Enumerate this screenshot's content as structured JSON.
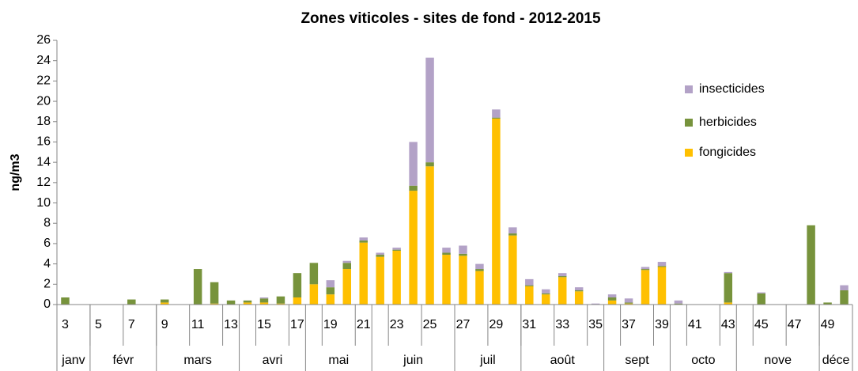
{
  "chart_data": {
    "type": "stacked_bar",
    "title": "Zones viticoles - sites de fond - 2012-2015",
    "y_label": "ng/m3",
    "categories": [
      "3",
      null,
      "5",
      null,
      "7",
      null,
      "9",
      null,
      "11",
      null,
      "13",
      null,
      "15",
      null,
      "17",
      null,
      "19",
      null,
      "21",
      null,
      "23",
      null,
      "25",
      null,
      "27",
      null,
      "29",
      null,
      "31",
      null,
      "33",
      null,
      "35",
      null,
      "37",
      null,
      "39",
      null,
      "41",
      null,
      "43",
      null,
      "45",
      null,
      "47",
      null,
      "49",
      null
    ],
    "months": [
      "janv",
      "janv",
      "févr",
      "févr",
      "févr",
      "févr",
      "mars",
      "mars",
      "mars",
      "mars",
      "mars",
      "avri",
      "avri",
      "avri",
      "avri",
      "mai",
      "mai",
      "mai",
      "mai",
      "juin",
      "juin",
      "juin",
      "juin",
      "juin",
      "juil",
      "juil",
      "juil",
      "juil",
      "août",
      "août",
      "août",
      "août",
      "août",
      "sept",
      "sept",
      "sept",
      "sept",
      "octo",
      "octo",
      "octo",
      "octo",
      "nove",
      "nove",
      "nove",
      "nove",
      "nove",
      "déce",
      "déce"
    ],
    "series": [
      {
        "name": "fongicides",
        "color": "#ffc000",
        "values": [
          0,
          0,
          0,
          0,
          0,
          0,
          0.2,
          0,
          0,
          0.1,
          0,
          0.2,
          0.2,
          0.1,
          0.7,
          2.0,
          1.0,
          3.5,
          6.1,
          4.7,
          5.3,
          11.2,
          13.6,
          4.9,
          4.8,
          3.3,
          18.3,
          6.8,
          1.8,
          1.0,
          2.7,
          1.3,
          0,
          0.4,
          0.1,
          3.4,
          3.7,
          0,
          0,
          0,
          0.2,
          0,
          0,
          0,
          0,
          0,
          0,
          0
        ]
      },
      {
        "name": "herbicides",
        "color": "#77933c",
        "values": [
          0.7,
          0,
          0,
          0,
          0.5,
          0,
          0.3,
          0,
          3.5,
          2.1,
          0.4,
          0.2,
          0.4,
          0.7,
          2.4,
          2.1,
          0.7,
          0.6,
          0.2,
          0.2,
          0.1,
          0.5,
          0.4,
          0.2,
          0.2,
          0.2,
          0.1,
          0.2,
          0.1,
          0.1,
          0.1,
          0.1,
          0,
          0.3,
          0.1,
          0.1,
          0.1,
          0.1,
          0,
          0,
          2.9,
          0,
          1.1,
          0,
          0,
          7.8,
          0.2,
          1.4
        ]
      },
      {
        "name": "insecticides",
        "color": "#b3a2c7",
        "values": [
          0,
          0,
          0,
          0,
          0,
          0,
          0,
          0,
          0,
          0,
          0,
          0,
          0.1,
          0,
          0,
          0,
          0.7,
          0.2,
          0.3,
          0.2,
          0.2,
          4.3,
          10.3,
          0.5,
          0.8,
          0.5,
          0.8,
          0.6,
          0.6,
          0.4,
          0.3,
          0.3,
          0.1,
          0.3,
          0.4,
          0.2,
          0.4,
          0.3,
          0,
          0,
          0.1,
          0,
          0.1,
          0,
          0,
          0,
          0,
          0.5
        ]
      }
    ],
    "ylim": [
      0,
      26
    ],
    "yticks": [
      0,
      2,
      4,
      6,
      8,
      10,
      12,
      14,
      16,
      18,
      20,
      22,
      24,
      26
    ],
    "grid": false,
    "legend": "right"
  }
}
